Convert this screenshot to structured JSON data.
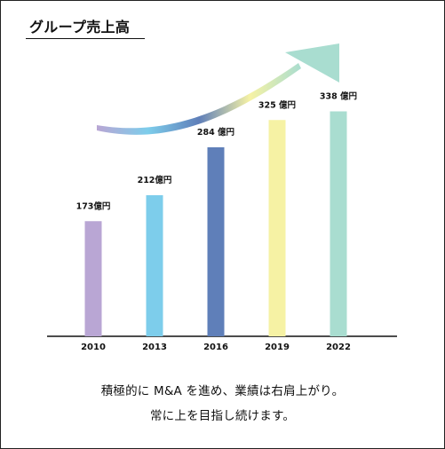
{
  "header": {
    "title": "グループ売上高"
  },
  "chart_data": {
    "type": "bar",
    "categories": [
      "2010",
      "2013",
      "2016",
      "2019",
      "2022"
    ],
    "values": [
      173,
      212,
      284,
      325,
      338
    ],
    "data_labels": [
      "173億円",
      "212億円",
      "284 億円",
      "325 億円",
      "338 億円"
    ],
    "bar_colors": [
      "#b9a6d4",
      "#7dcdeb",
      "#5f7fb9",
      "#f6f2a4",
      "#a9ddd0"
    ],
    "title": "グループ売上高",
    "xlabel": "",
    "ylabel": "",
    "ylim": [
      0,
      400
    ],
    "grid": false,
    "legend": "none",
    "trend_arrow_colors": [
      "#b9a6d4",
      "#7dcdeb",
      "#5f7fb9",
      "#f6f2a4",
      "#a9ddd0"
    ]
  },
  "caption": {
    "line1": "積極的に M&A を進め、業績は右肩上がり。",
    "line2": "常に上を目指し続けます。"
  }
}
